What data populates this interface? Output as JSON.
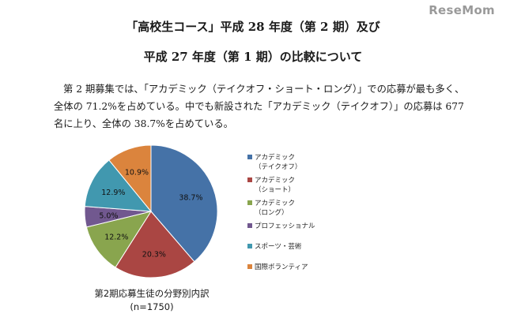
{
  "watermark": "ReseMom",
  "heading": {
    "line1": "「高校生コース」平成 28 年度（第 2 期）及び",
    "line2": "平成 27 年度（第 1 期）の比較について"
  },
  "paragraph": "第 2 期募集では、「アカデミック（テイクオフ・ショート・ロング）」での応募が最も多く、全体の 71.2%を占めている。中でも新設された「アカデミック（テイクオフ）」の応募は 677 名に上り、全体の 38.7%を占めている。",
  "chart_data": {
    "type": "pie",
    "title": "第2期応募生徒の分野別内訳",
    "subtitle": "(n=1750)",
    "legend_position": "right",
    "slices": [
      {
        "label_lines": [
          "アカデミック",
          "（テイクオフ）"
        ],
        "value": 38.7,
        "label": "38.7%",
        "color": "#4572A7"
      },
      {
        "label_lines": [
          "アカデミック",
          "（ショート）"
        ],
        "value": 20.3,
        "label": "20.3%",
        "color": "#AA4643"
      },
      {
        "label_lines": [
          "アカデミック",
          "（ロング）"
        ],
        "value": 12.2,
        "label": "12.2%",
        "color": "#89A54E"
      },
      {
        "label_lines": [
          "プロフェッショナル"
        ],
        "value": 5.0,
        "label": "5.0%",
        "color": "#71588F"
      },
      {
        "label_lines": [
          "スポーツ・芸術"
        ],
        "value": 12.9,
        "label": "12.9%",
        "color": "#4198AF"
      },
      {
        "label_lines": [
          "国際ボランティア"
        ],
        "value": 10.9,
        "label": "10.9%",
        "color": "#DB843D"
      }
    ]
  }
}
